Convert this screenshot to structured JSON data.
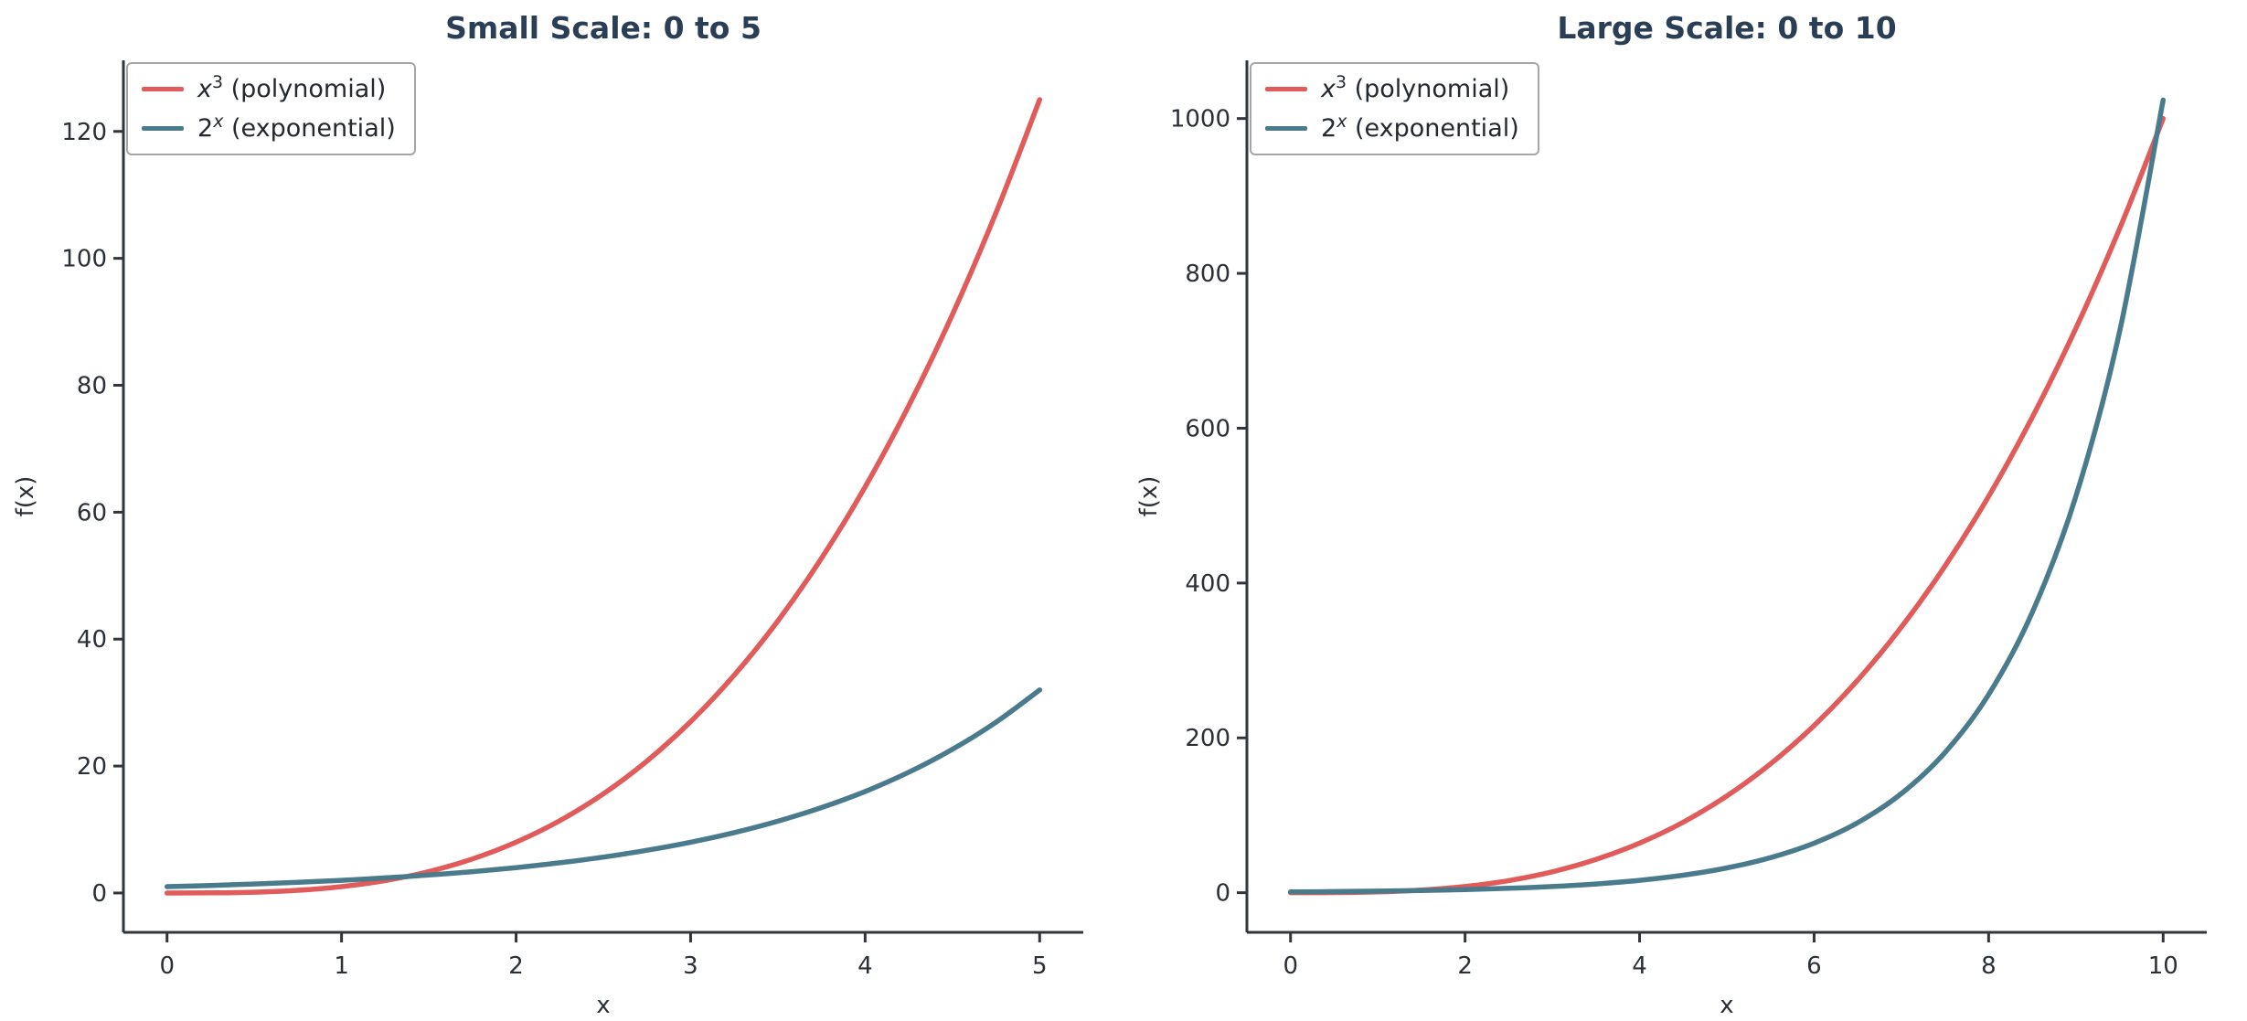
{
  "figure": {
    "background": "#ffffff",
    "title_color": "#2a3f55",
    "tick_color": "#2b2f36",
    "spine_color": "#31363d",
    "legend_border": "#a6a6a6",
    "legend_text_color": "#24292f",
    "line_width": 5.5
  },
  "chart_data": [
    {
      "type": "line",
      "title": "Small Scale: 0 to 5",
      "xlabel": "x",
      "ylabel": "f(x)",
      "xlim": [
        -0.25,
        5.25
      ],
      "ylim": [
        -6.2,
        131.2
      ],
      "xticks": [
        0,
        1,
        2,
        3,
        4,
        5
      ],
      "yticks": [
        0,
        20,
        40,
        60,
        80,
        100,
        120
      ],
      "grid": false,
      "legend_position": "upper left",
      "x": [
        0,
        0.25,
        0.5,
        0.75,
        1,
        1.25,
        1.5,
        1.75,
        2,
        2.25,
        2.5,
        2.75,
        3,
        3.25,
        3.5,
        3.75,
        4,
        4.25,
        4.5,
        4.75,
        5
      ],
      "series": [
        {
          "label": "x^3 (polynomial)",
          "color": "#e15b5b",
          "label_parts": [
            {
              "text": "x",
              "sup": false,
              "italic": true
            },
            {
              "text": "3",
              "sup": true,
              "italic": false
            },
            {
              "text": " (polynomial)",
              "sup": false,
              "italic": false
            }
          ],
          "values": [
            0,
            0.016,
            0.125,
            0.422,
            1,
            1.953,
            3.375,
            5.359,
            8,
            11.391,
            15.625,
            20.797,
            27,
            34.328,
            42.875,
            52.734,
            64,
            76.766,
            91.125,
            107.172,
            125
          ]
        },
        {
          "label": "2^x (exponential)",
          "color": "#4a7b8c",
          "label_parts": [
            {
              "text": "2",
              "sup": false,
              "italic": false
            },
            {
              "text": "x",
              "sup": true,
              "italic": true
            },
            {
              "text": " (exponential)",
              "sup": false,
              "italic": false
            }
          ],
          "values": [
            1,
            1.189,
            1.414,
            1.682,
            2,
            2.378,
            2.828,
            3.364,
            4,
            4.757,
            5.657,
            6.727,
            8,
            9.514,
            11.314,
            13.454,
            16,
            19.027,
            22.627,
            26.909,
            32
          ]
        }
      ]
    },
    {
      "type": "line",
      "title": "Large Scale: 0 to 10",
      "xlabel": "x",
      "ylabel": "f(x)",
      "xlim": [
        -0.5,
        10.5
      ],
      "ylim": [
        -51.2,
        1075.2
      ],
      "xticks": [
        0,
        2,
        4,
        6,
        8,
        10
      ],
      "yticks": [
        0,
        200,
        400,
        600,
        800,
        1000
      ],
      "grid": false,
      "legend_position": "upper left",
      "x": [
        0,
        0.5,
        1,
        1.5,
        2,
        2.5,
        3,
        3.5,
        4,
        4.5,
        5,
        5.5,
        6,
        6.5,
        7,
        7.5,
        8,
        8.5,
        9,
        9.5,
        10
      ],
      "series": [
        {
          "label": "x^3 (polynomial)",
          "color": "#e15b5b",
          "label_parts": [
            {
              "text": "x",
              "sup": false,
              "italic": true
            },
            {
              "text": "3",
              "sup": true,
              "italic": false
            },
            {
              "text": " (polynomial)",
              "sup": false,
              "italic": false
            }
          ],
          "values": [
            0,
            0.125,
            1,
            3.375,
            8,
            15.625,
            27,
            42.875,
            64,
            91.125,
            125,
            166.375,
            216,
            274.625,
            343,
            421.875,
            512,
            614.125,
            729,
            857.375,
            1000
          ]
        },
        {
          "label": "2^x (exponential)",
          "color": "#4a7b8c",
          "label_parts": [
            {
              "text": "2",
              "sup": false,
              "italic": false
            },
            {
              "text": "x",
              "sup": true,
              "italic": true
            },
            {
              "text": " (exponential)",
              "sup": false,
              "italic": false
            }
          ],
          "values": [
            1,
            1.414,
            2,
            2.828,
            4,
            5.657,
            8,
            11.314,
            16,
            22.627,
            32,
            45.255,
            64,
            90.51,
            128,
            181.019,
            256,
            362.039,
            512,
            724.077,
            1024
          ]
        }
      ]
    }
  ]
}
